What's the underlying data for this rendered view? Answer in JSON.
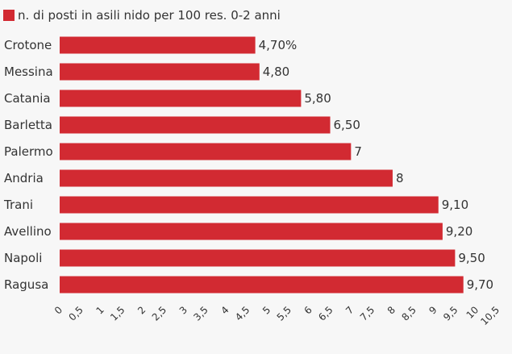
{
  "chart_data": {
    "type": "bar",
    "orientation": "horizontal",
    "series": [
      {
        "name": "n. di posti in asili nido per 100 res. 0-2 anni",
        "color": "#d22a32",
        "values": [
          4.7,
          4.8,
          5.8,
          6.5,
          7,
          8,
          9.1,
          9.2,
          9.5,
          9.7
        ],
        "value_labels": [
          "4,70%",
          "4,80",
          "5,80",
          "6,50",
          "7",
          "8",
          "9,10",
          "9,20",
          "9,50",
          "9,70"
        ]
      }
    ],
    "categories": [
      "Crotone",
      "Messina",
      "Catania",
      "Barletta",
      "Palermo",
      "Andria",
      "Trani",
      "Avellino",
      "Napoli",
      "Ragusa"
    ],
    "xlim": [
      0,
      10.5
    ],
    "x_ticks": [
      0,
      0.5,
      1,
      1.5,
      2,
      2.5,
      3,
      3.5,
      4,
      4.5,
      5,
      5.5,
      6,
      6.5,
      7,
      7.5,
      8,
      8.5,
      9,
      9.5,
      10,
      10.5
    ],
    "x_tick_labels": [
      "0",
      "0,5",
      "1",
      "1,5",
      "2",
      "2,5",
      "3",
      "3,5",
      "4",
      "4,5",
      "5",
      "5,5",
      "6",
      "6,5",
      "7",
      "7,5",
      "8",
      "8,5",
      "9",
      "9,5",
      "10",
      "10,5"
    ],
    "legend_position": "top-left",
    "grid": false
  }
}
